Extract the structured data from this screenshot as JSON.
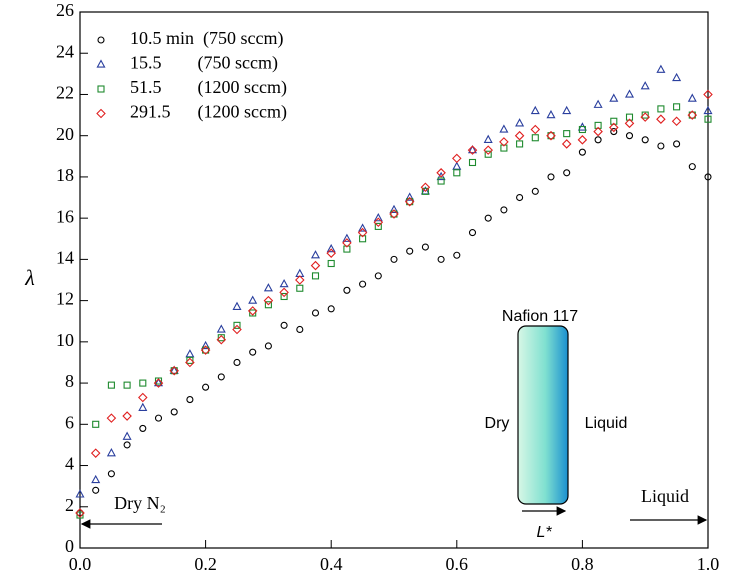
{
  "chart_data": {
    "type": "scatter",
    "y_label": "λ",
    "x": [
      0,
      0.025,
      0.05,
      0.075,
      0.1,
      0.125,
      0.15,
      0.175,
      0.2,
      0.225,
      0.25,
      0.275,
      0.3,
      0.325,
      0.35,
      0.375,
      0.4,
      0.425,
      0.45,
      0.475,
      0.5,
      0.525,
      0.55,
      0.575,
      0.6,
      0.625,
      0.65,
      0.675,
      0.7,
      0.725,
      0.75,
      0.775,
      0.8,
      0.825,
      0.85,
      0.875,
      0.9,
      0.925,
      0.95,
      0.975,
      1.0
    ],
    "series": [
      {
        "name": "10.5 min  (750 sccm)",
        "color": "#000000",
        "marker": "circle",
        "values": [
          1.7,
          2.8,
          3.6,
          5.0,
          5.8,
          6.3,
          6.6,
          7.2,
          7.8,
          8.3,
          9.0,
          9.5,
          9.8,
          10.8,
          10.6,
          11.4,
          11.6,
          12.5,
          12.8,
          13.2,
          14.0,
          14.4,
          14.6,
          14.0,
          14.2,
          15.3,
          16.0,
          16.4,
          17.0,
          17.3,
          18.0,
          18.2,
          19.2,
          19.8,
          20.2,
          20.0,
          19.8,
          19.5,
          19.6,
          18.5,
          18.0
        ]
      },
      {
        "name": "15.5        (750 sccm)",
        "color": "#2a3f9e",
        "marker": "triangle",
        "values": [
          2.6,
          3.3,
          4.6,
          5.4,
          6.8,
          8.0,
          8.6,
          9.4,
          9.8,
          10.6,
          11.7,
          12.0,
          12.6,
          12.8,
          13.3,
          14.2,
          14.5,
          15.0,
          15.5,
          16.0,
          16.4,
          17.0,
          17.3,
          18.0,
          18.5,
          19.3,
          19.8,
          20.3,
          20.6,
          21.2,
          21.0,
          21.2,
          20.4,
          21.5,
          21.8,
          22.0,
          22.4,
          23.2,
          22.8,
          21.8,
          21.2
        ]
      },
      {
        "name": "51.5        (1200 sccm)",
        "color": "#1e8a2e",
        "marker": "square",
        "values": [
          1.6,
          6.0,
          7.9,
          7.9,
          8.0,
          8.1,
          8.6,
          9.1,
          9.6,
          10.2,
          10.8,
          11.4,
          11.8,
          12.2,
          12.6,
          13.2,
          13.8,
          14.5,
          15.0,
          15.6,
          16.2,
          16.8,
          17.3,
          17.8,
          18.2,
          18.7,
          19.1,
          19.4,
          19.6,
          19.9,
          20.0,
          20.1,
          20.3,
          20.5,
          20.7,
          20.9,
          21.0,
          21.3,
          21.4,
          21.0,
          20.8
        ]
      },
      {
        "name": "291.5      (1200 sccm)",
        "color": "#e02020",
        "marker": "diamond",
        "values": [
          1.7,
          4.6,
          6.3,
          6.4,
          7.3,
          8.0,
          8.6,
          9.0,
          9.6,
          10.1,
          10.6,
          11.5,
          12.0,
          12.4,
          13.0,
          13.7,
          14.3,
          14.8,
          15.3,
          15.8,
          16.2,
          16.8,
          17.5,
          18.2,
          18.9,
          19.3,
          19.3,
          19.7,
          20.0,
          20.3,
          20.0,
          19.6,
          19.8,
          20.2,
          20.4,
          20.6,
          20.9,
          20.8,
          20.7,
          21.0,
          22.0
        ]
      }
    ],
    "xlim": [
      0,
      1.0
    ],
    "xticks": [
      {
        "value": 0,
        "label": "0.0"
      },
      0.2,
      0.4,
      0.6,
      0.8,
      {
        "value": 1.0,
        "label": "1.0"
      }
    ],
    "ylim": [
      0,
      26
    ],
    "yticks": [
      0,
      2,
      4,
      6,
      8,
      10,
      12,
      14,
      16,
      18,
      20,
      22,
      24,
      26
    ],
    "annotations": [
      "Dry N₂",
      "Liquid"
    ],
    "inset": {
      "title": "Nafion 117",
      "left": "Dry",
      "right": "Liquid",
      "axis": "L*"
    }
  }
}
